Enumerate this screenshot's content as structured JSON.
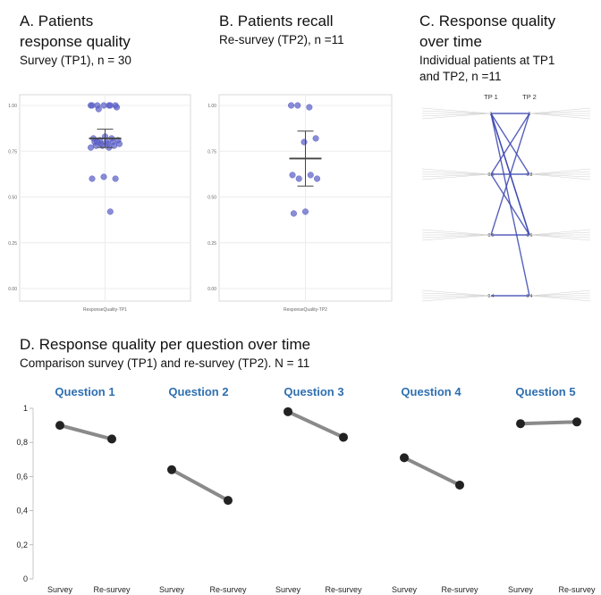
{
  "panelA": {
    "title": [
      "A. Patients",
      "response quality"
    ],
    "subtitle": "Survey (TP1), n = 30",
    "xtick": "ResponseQuality-TP1"
  },
  "panelB": {
    "title": "B. Patients recall",
    "subtitle": "Re-survey (TP2), n =11",
    "xtick": "ResponseQuality-TP2"
  },
  "panelC": {
    "title": [
      "C. Response quality",
      "over time"
    ],
    "subtitle": [
      "Individual patients at TP1",
      "and TP2, n =11"
    ],
    "header": [
      "TP 1",
      "TP 2"
    ]
  },
  "panelD": {
    "title": "D. Response quality per question over time",
    "subtitle": "Comparison survey (TP1) and re-survey (TP2). N = 11"
  },
  "colors": {
    "dot": "#5b5fc7",
    "line": "#3a45b0",
    "connector": "#8a8a8a",
    "marker": "#222222",
    "question_title": "#2f6fb0"
  },
  "chart_data": [
    {
      "type": "scatter",
      "name_panel": "A",
      "x_category": "ResponseQuality-TP1",
      "ylim": [
        0,
        1
      ],
      "yticks": [
        "0.00",
        "0.25",
        "0.50",
        "0.75",
        "1.00"
      ],
      "values": [
        1.0,
        1.0,
        1.0,
        1.0,
        1.0,
        1.0,
        1.0,
        0.98,
        0.99,
        0.83,
        0.82,
        0.82,
        0.81,
        0.81,
        0.8,
        0.8,
        0.8,
        0.79,
        0.79,
        0.79,
        0.78,
        0.78,
        0.78,
        0.77,
        0.77,
        0.8,
        0.6,
        0.61,
        0.6,
        0.42
      ],
      "mean": 0.82,
      "ci": [
        0.77,
        0.87
      ]
    },
    {
      "type": "scatter",
      "name_panel": "B",
      "x_category": "ResponseQuality-TP2",
      "ylim": [
        0,
        1
      ],
      "yticks": [
        "0.00",
        "0.25",
        "0.50",
        "0.75",
        "1.00"
      ],
      "values": [
        1.0,
        0.99,
        1.0,
        0.82,
        0.8,
        0.62,
        0.62,
        0.6,
        0.6,
        0.42,
        0.41
      ],
      "mean": 0.71,
      "ci": [
        0.56,
        0.86
      ]
    },
    {
      "type": "line",
      "name_panel": "C",
      "levels": [
        1.0,
        0.8,
        0.6,
        0.4
      ],
      "level_labels": [
        "1",
        "0.8",
        "0.6",
        "0.4"
      ],
      "pairs": [
        [
          1.0,
          1.0
        ],
        [
          1.0,
          0.8
        ],
        [
          1.0,
          0.6
        ],
        [
          1.0,
          0.6
        ],
        [
          1.0,
          0.4
        ],
        [
          0.8,
          1.0
        ],
        [
          0.8,
          0.6
        ],
        [
          0.8,
          0.8
        ],
        [
          0.6,
          1.0
        ],
        [
          0.6,
          0.6
        ],
        [
          0.4,
          0.4
        ]
      ]
    },
    {
      "type": "line",
      "name_panel": "D",
      "ylim": [
        0,
        1
      ],
      "yticks": [
        "0",
        "0,2",
        "0,4",
        "0,6",
        "0,8",
        "1"
      ],
      "categories": [
        "Survey",
        "Re-survey"
      ],
      "series": [
        {
          "name": "Question 1",
          "values": [
            0.9,
            0.82
          ]
        },
        {
          "name": "Question 2",
          "values": [
            0.64,
            0.46
          ]
        },
        {
          "name": "Question 3",
          "values": [
            0.98,
            0.83
          ]
        },
        {
          "name": "Question 4",
          "values": [
            0.71,
            0.55
          ]
        },
        {
          "name": "Question 5",
          "values": [
            0.91,
            0.92
          ]
        }
      ]
    }
  ]
}
